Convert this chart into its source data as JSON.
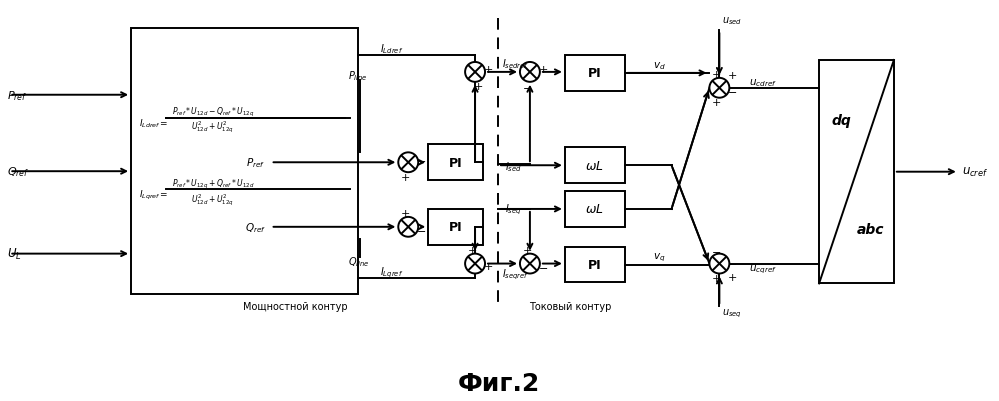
{
  "title": "Фиг.2",
  "title_fontsize": 18,
  "bg_color": "#ffffff",
  "line_color": "#000000",
  "label_power": "Мощностной контур",
  "label_current": "Токовый контур"
}
